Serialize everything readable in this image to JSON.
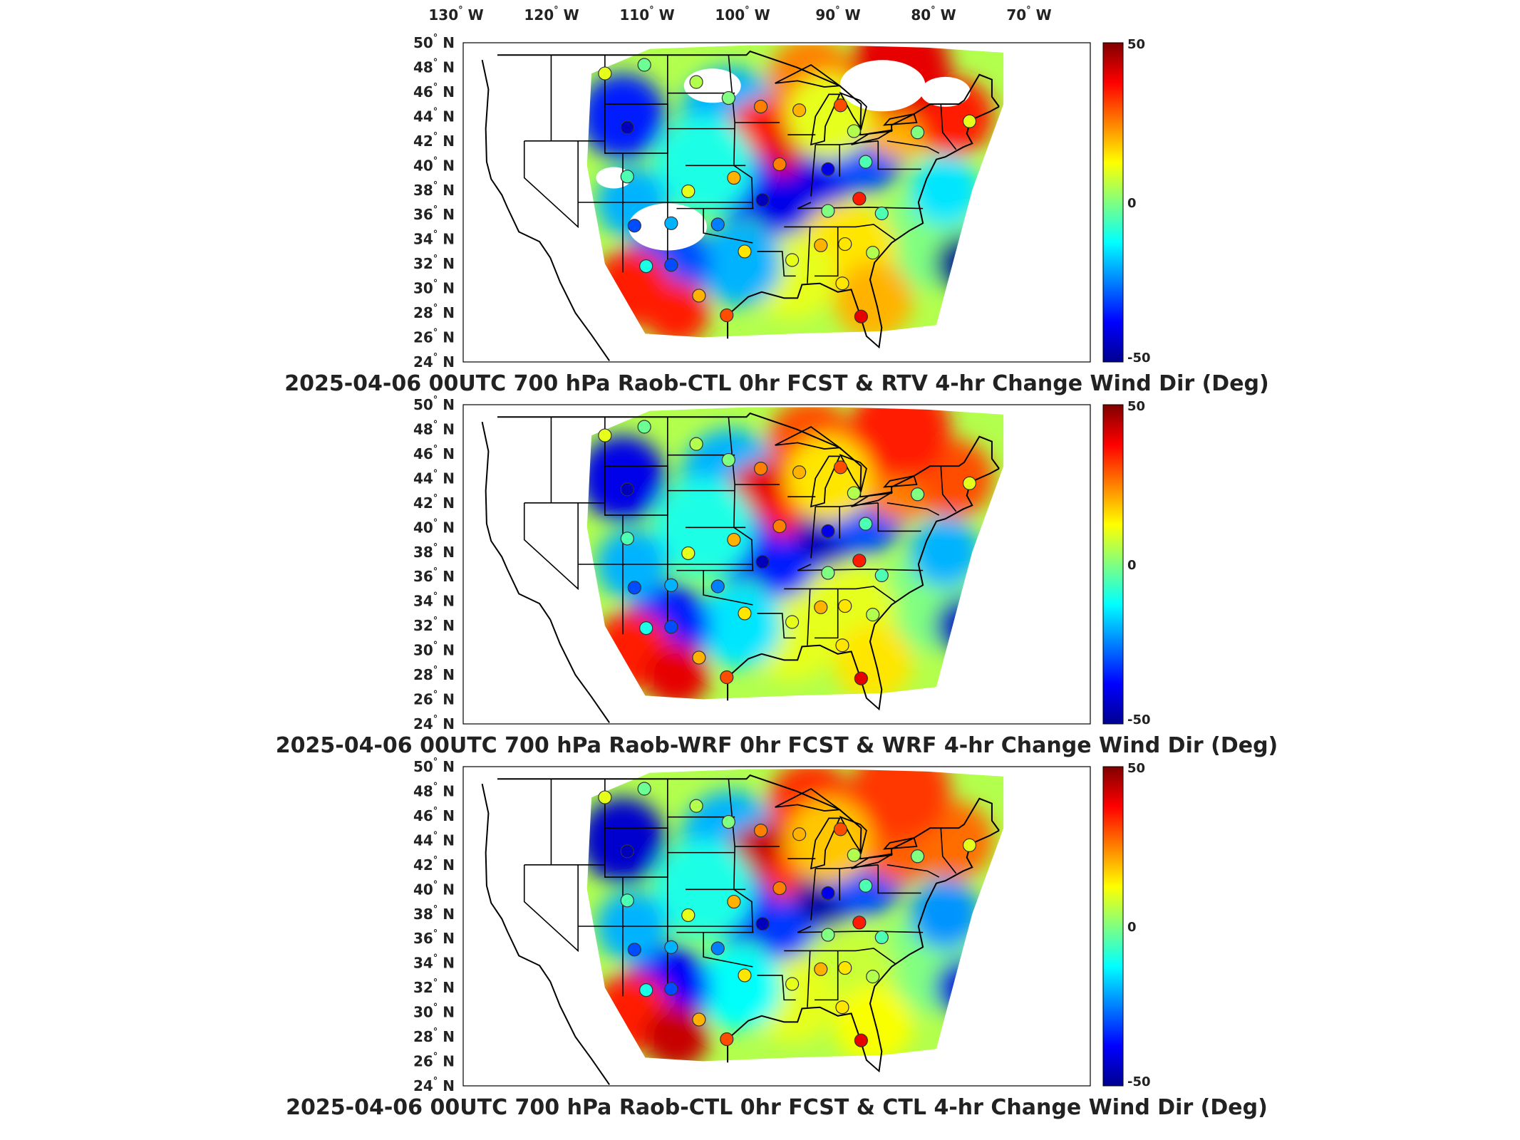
{
  "colors": {
    "colormap": [
      "#00008f",
      "#0000ff",
      "#0080ff",
      "#00ffff",
      "#80ff80",
      "#ffff00",
      "#ff8000",
      "#ff0000",
      "#800000"
    ],
    "station_edge": "#333333",
    "state_lines": "#000000"
  },
  "map": {
    "projection": "lambert-like CONUS",
    "lon_ticks": [
      "130",
      "120",
      "110",
      "100",
      "90",
      "80",
      "70"
    ],
    "lon_suffix": "W",
    "lat_ticks": [
      "50",
      "48",
      "46",
      "44",
      "42",
      "40",
      "38",
      "36",
      "34",
      "32",
      "30",
      "28",
      "26",
      "24"
    ],
    "lat_suffix": "N",
    "degree_symbol": "°"
  },
  "panels": [
    {
      "id": "top",
      "title": "2025-04-06 00UTC 700 hPa Raob-CTL 0hr FCST & RTV 4-hr Change Wind Dir (Deg)",
      "colorbar": {
        "max": "50",
        "mid": "0",
        "min": "-50"
      }
    },
    {
      "id": "middle",
      "title": "2025-04-06 00UTC 700 hPa Raob-WRF 0hr FCST & WRF 4-hr Change Wind Dir (Deg)",
      "colorbar": {
        "max": "50",
        "mid": "0",
        "min": "-50"
      }
    },
    {
      "id": "bottom",
      "title": "2025-04-06 00UTC 700 hPa Raob-CTL 0hr FCST & CTL 4-hr Change Wind Dir (Deg)",
      "colorbar": {
        "max": "50",
        "mid": "0",
        "min": "-50"
      }
    }
  ],
  "chart_data": {
    "type": "heatmap",
    "variable": "Change Wind Dir (Deg)",
    "value_range": [
      -50,
      50
    ],
    "stations": [
      {
        "lon": -111.0,
        "lat": 47.5,
        "v": 10
      },
      {
        "lon": -106.6,
        "lat": 48.2,
        "v": -2
      },
      {
        "lon": -100.8,
        "lat": 46.8,
        "v": 5
      },
      {
        "lon": -97.2,
        "lat": 45.5,
        "v": 0
      },
      {
        "lon": -108.5,
        "lat": 43.1,
        "v": -45
      },
      {
        "lon": -93.6,
        "lat": 44.8,
        "v": 25
      },
      {
        "lon": -89.3,
        "lat": 44.5,
        "v": 20
      },
      {
        "lon": -84.7,
        "lat": 44.9,
        "v": 30
      },
      {
        "lon": -83.2,
        "lat": 42.8,
        "v": 5
      },
      {
        "lon": -76.1,
        "lat": 42.7,
        "v": 0
      },
      {
        "lon": -108.5,
        "lat": 39.1,
        "v": -5
      },
      {
        "lon": -96.6,
        "lat": 39.0,
        "v": 20
      },
      {
        "lon": -91.5,
        "lat": 40.1,
        "v": 25
      },
      {
        "lon": -86.1,
        "lat": 39.7,
        "v": -40
      },
      {
        "lon": -81.9,
        "lat": 40.3,
        "v": -5
      },
      {
        "lon": -101.7,
        "lat": 37.9,
        "v": 10
      },
      {
        "lon": -93.4,
        "lat": 37.2,
        "v": -45
      },
      {
        "lon": -82.6,
        "lat": 37.3,
        "v": 35
      },
      {
        "lon": -107.7,
        "lat": 35.1,
        "v": -30
      },
      {
        "lon": -103.6,
        "lat": 35.3,
        "v": -20
      },
      {
        "lon": -98.4,
        "lat": 35.2,
        "v": -25
      },
      {
        "lon": -86.1,
        "lat": 36.3,
        "v": 0
      },
      {
        "lon": -80.1,
        "lat": 36.1,
        "v": -5
      },
      {
        "lon": -95.4,
        "lat": 33.0,
        "v": 15
      },
      {
        "lon": -90.1,
        "lat": 32.3,
        "v": 10
      },
      {
        "lon": -86.9,
        "lat": 33.5,
        "v": 20
      },
      {
        "lon": -84.2,
        "lat": 33.6,
        "v": 15
      },
      {
        "lon": -81.1,
        "lat": 32.9,
        "v": 5
      },
      {
        "lon": -106.4,
        "lat": 31.8,
        "v": -10
      },
      {
        "lon": -103.6,
        "lat": 31.9,
        "v": -30
      },
      {
        "lon": -97.4,
        "lat": 27.8,
        "v": 30
      },
      {
        "lon": -84.5,
        "lat": 30.4,
        "v": 15
      },
      {
        "lon": -82.4,
        "lat": 27.7,
        "v": 40
      },
      {
        "lon": -100.5,
        "lat": 29.4,
        "v": 20
      },
      {
        "lon": -70.3,
        "lat": 43.6,
        "v": 10
      }
    ]
  }
}
